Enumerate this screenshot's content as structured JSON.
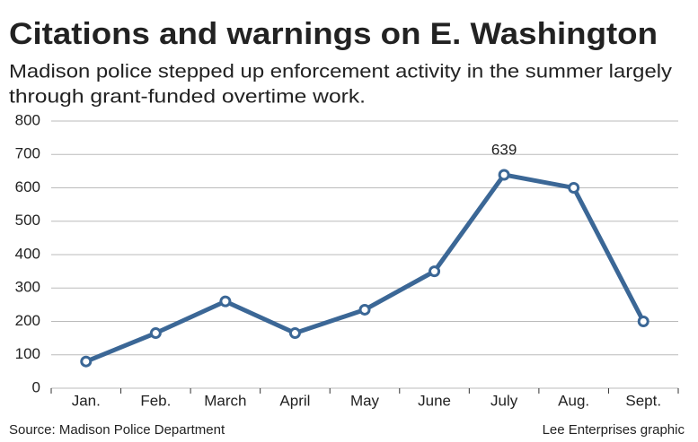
{
  "chart_data": {
    "type": "line",
    "title": "Citations and warnings on E. Washington",
    "subtitle": [
      "Madison police stepped up enforcement activity in the summer largely",
      "through grant-funded overtime work."
    ],
    "categories": [
      "Jan.",
      "Feb.",
      "March",
      "April",
      "May",
      "June",
      "July",
      "Aug.",
      "Sept."
    ],
    "values": [
      80,
      165,
      260,
      165,
      235,
      350,
      639,
      600,
      200
    ],
    "color": "#3b6796",
    "ylim": [
      0,
      800
    ],
    "yticks": [
      0,
      100,
      200,
      300,
      400,
      500,
      600,
      700,
      800
    ],
    "grid": true,
    "labeled_point": 6,
    "source": "Source: Madison Police Department",
    "credit": "Lee Enterprises graphic"
  }
}
